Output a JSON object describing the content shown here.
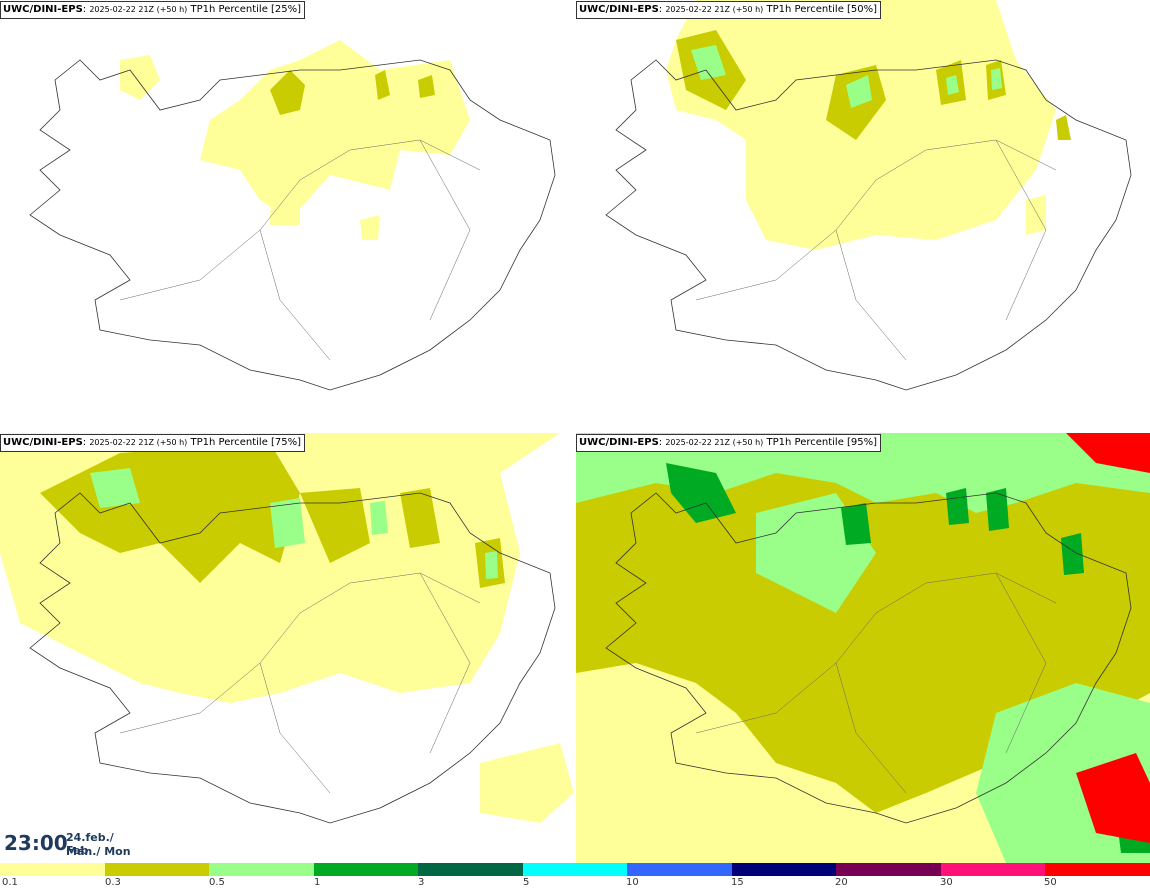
{
  "panels": [
    {
      "model": "UWC/DINI-EPS",
      "run": "2025-02-22 21Z (+50 h)",
      "product": "TP1h Percentile [25%]"
    },
    {
      "model": "UWC/DINI-EPS",
      "run": "2025-02-22 21Z (+50 h)",
      "product": "TP1h Percentile [50%]"
    },
    {
      "model": "UWC/DINI-EPS",
      "run": "2025-02-22 21Z (+50 h)",
      "product": "TP1h Percentile [75%]"
    },
    {
      "model": "UWC/DINI-EPS",
      "run": "2025-02-22 21Z (+50 h)",
      "product": "TP1h Percentile [95%]"
    }
  ],
  "valid_time": {
    "time": "23:00",
    "date_line1": "24.feb./ Feb",
    "date_line2": "Mán./ Mon"
  },
  "legend": {
    "labels": [
      "0.1",
      "0.3",
      "0.5",
      "1",
      "3",
      "5",
      "10",
      "15",
      "20",
      "30",
      "50"
    ],
    "colors": [
      "#ffff99",
      "#c8cc00",
      "#99ff88",
      "#00aa22",
      "#006644",
      "#00ffff",
      "#3366ff",
      "#000077",
      "#770055",
      "#ff1177",
      "#ff0000"
    ]
  }
}
